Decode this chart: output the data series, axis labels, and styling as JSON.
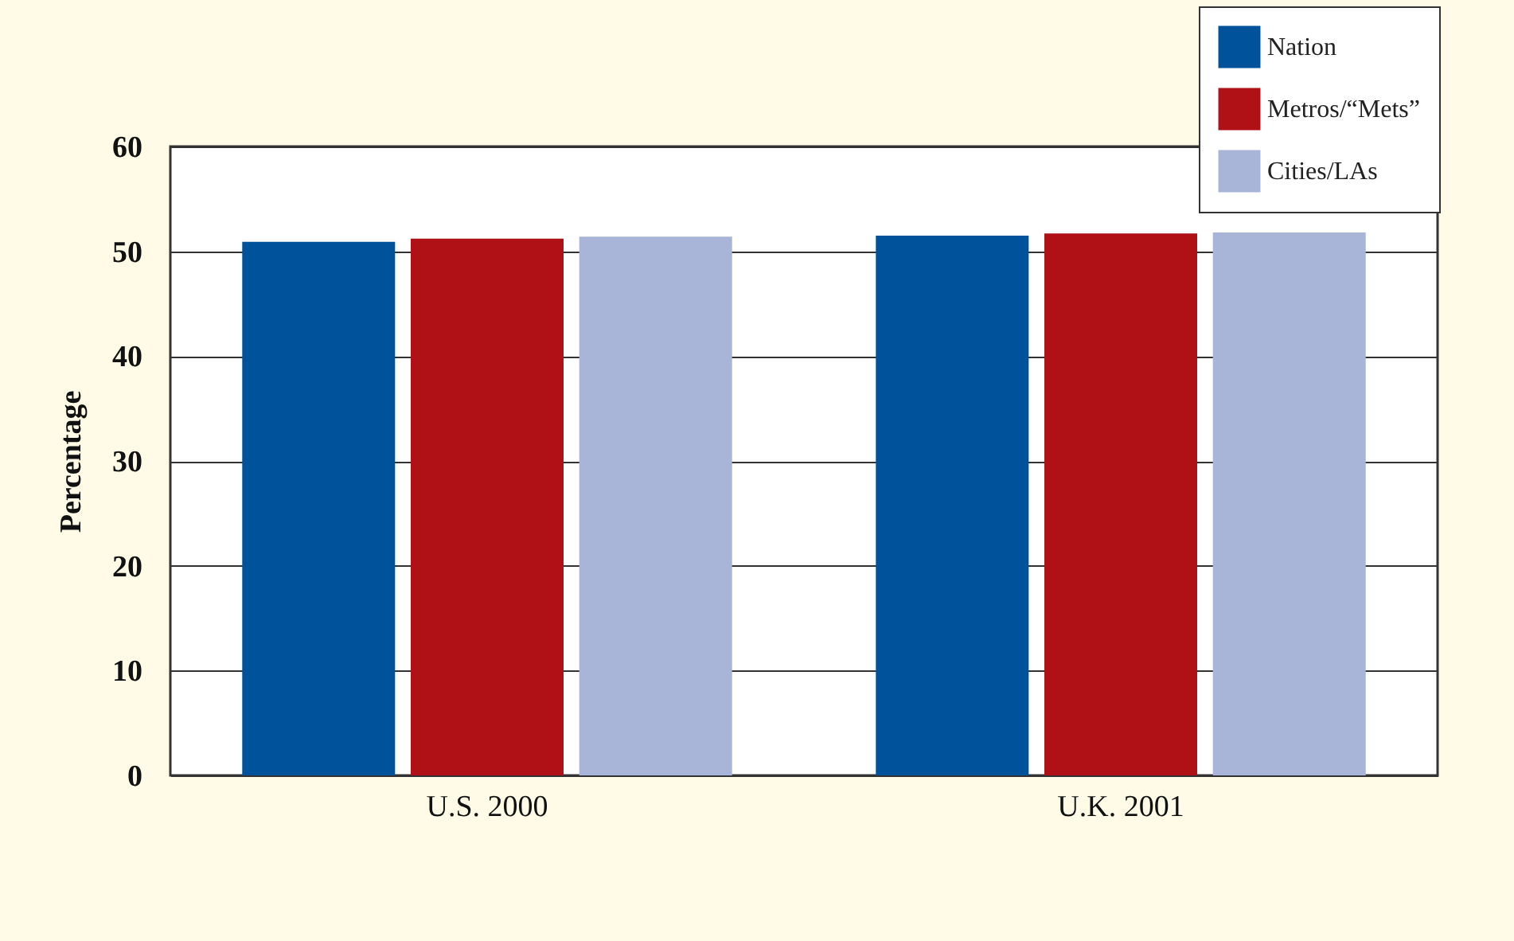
{
  "chart_data": {
    "type": "bar",
    "ylabel": "Percentage",
    "categories": [
      "U.S. 2000",
      "U.K. 2001"
    ],
    "series": [
      {
        "name": "Nation",
        "color": "#00529b",
        "values": [
          50.9,
          51.5
        ]
      },
      {
        "name": "Metros/“Mets”",
        "color": "#b01117",
        "values": [
          51.2,
          51.7
        ]
      },
      {
        "name": "Cities/LAs",
        "color": "#a8b4d8",
        "values": [
          51.4,
          51.8
        ]
      }
    ],
    "ylim": [
      0,
      60
    ],
    "yticks": [
      0,
      10,
      20,
      30,
      40,
      50,
      60
    ],
    "grid": "y",
    "legend": "top right"
  }
}
